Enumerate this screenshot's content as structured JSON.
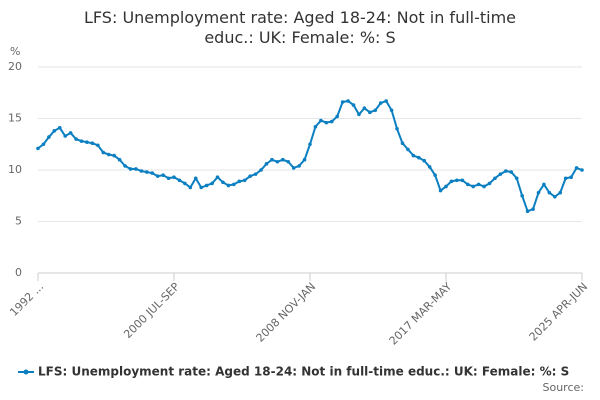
{
  "chart_data": {
    "type": "line",
    "title": "LFS: Unemployment rate: Aged 18-24: Not in full-time educ.: UK: Female: %: S",
    "y_label": "%",
    "source": "Source:",
    "categories": [
      "1992 ...",
      null,
      null,
      null,
      null,
      null,
      null,
      null,
      null,
      null,
      null,
      null,
      null,
      null,
      null,
      null,
      null,
      null,
      null,
      null,
      null,
      null,
      null,
      null,
      null,
      "2000 JUL-SEP",
      null,
      null,
      null,
      null,
      null,
      null,
      null,
      null,
      null,
      null,
      null,
      null,
      null,
      null,
      null,
      null,
      null,
      null,
      null,
      null,
      null,
      null,
      null,
      null,
      "2008 NOV-JAN",
      null,
      null,
      null,
      null,
      null,
      null,
      null,
      null,
      null,
      null,
      null,
      null,
      null,
      null,
      null,
      null,
      null,
      null,
      null,
      null,
      null,
      null,
      null,
      null,
      "2017 MAR-MAY",
      null,
      null,
      null,
      null,
      null,
      null,
      null,
      null,
      null,
      null,
      null,
      null,
      null,
      null,
      null,
      null,
      null,
      null,
      null,
      null,
      null,
      null,
      null,
      null,
      "2025 APR-JUN"
    ],
    "series": [
      {
        "name": "LFS: Unemployment rate: Aged 18-24: Not in full-time educ.: UK: Female: %: S",
        "color": "#0b7fc1",
        "values": [
          12.1,
          12.5,
          13.2,
          13.8,
          14.1,
          13.3,
          13.6,
          13.0,
          12.8,
          12.7,
          12.6,
          12.4,
          11.7,
          11.5,
          11.4,
          11.0,
          10.4,
          10.1,
          10.1,
          9.9,
          9.8,
          9.7,
          9.4,
          9.5,
          9.2,
          9.3,
          9.0,
          8.7,
          8.3,
          9.2,
          8.3,
          8.5,
          8.7,
          9.3,
          8.8,
          8.5,
          8.6,
          8.9,
          9.0,
          9.4,
          9.6,
          10.0,
          10.6,
          11.0,
          10.8,
          11.0,
          10.8,
          10.2,
          10.4,
          11.0,
          12.5,
          14.2,
          14.8,
          14.6,
          14.7,
          15.2,
          16.6,
          16.7,
          16.3,
          15.4,
          16.0,
          15.6,
          15.8,
          16.5,
          16.7,
          15.8,
          14.0,
          12.6,
          12.0,
          11.4,
          11.2,
          10.9,
          10.3,
          9.5,
          8.0,
          8.4,
          8.9,
          9.0,
          9.0,
          8.6,
          8.4,
          8.6,
          8.4,
          8.7,
          9.2,
          9.6,
          9.9,
          9.8,
          9.2,
          7.5,
          6.0,
          6.2,
          7.8,
          8.6,
          7.8,
          7.4,
          7.8,
          9.2,
          9.3,
          10.2,
          10.0
        ]
      }
    ],
    "ylim": [
      0,
      20
    ],
    "yticks": [
      0,
      5,
      10,
      15,
      20
    ],
    "grid": true
  }
}
